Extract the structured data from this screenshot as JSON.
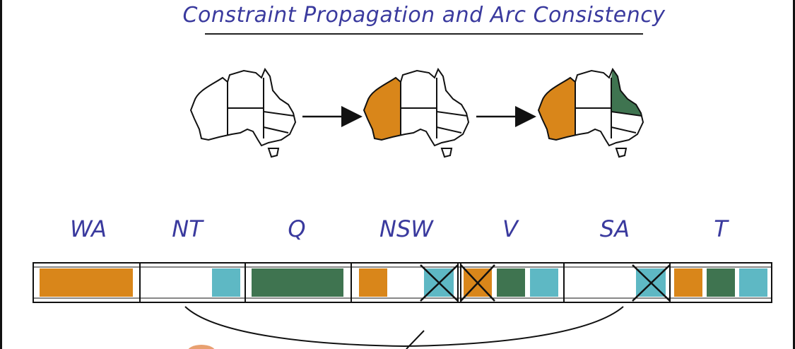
{
  "title": "Constraint Propagation and Arc Consistency",
  "colors": {
    "orange": "#d9861a",
    "green": "#3f7450",
    "cyan": "#5eb8c4",
    "ink": "#3a3a9e"
  },
  "regions": [
    {
      "label": "WA"
    },
    {
      "label": "NT"
    },
    {
      "label": "Q"
    },
    {
      "label": "NSW"
    },
    {
      "label": "V"
    },
    {
      "label": "SA"
    },
    {
      "label": "T"
    }
  ]
}
